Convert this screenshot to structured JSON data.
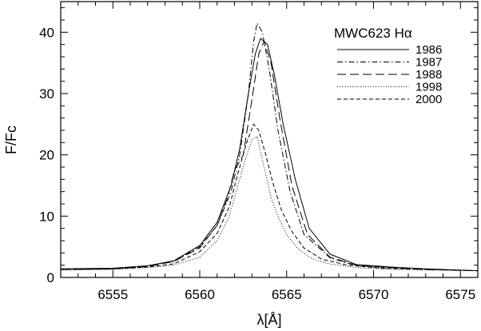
{
  "chart_data": {
    "type": "line",
    "xlabel": "λ[Å]",
    "ylabel": "F/Fc",
    "xlim": [
      6552,
      6576
    ],
    "ylim": [
      0,
      45
    ],
    "x_ticks": [
      6555,
      6560,
      6565,
      6570,
      6575
    ],
    "y_ticks": [
      0,
      10,
      20,
      30,
      40
    ],
    "grid": false,
    "legend": {
      "title": "MWC623  Hα",
      "placement": "top-right"
    },
    "series": [
      {
        "name": "1986",
        "style": "solid",
        "x": [
          6552,
          6555,
          6557,
          6558.5,
          6560,
          6561,
          6561.8,
          6562.3,
          6562.8,
          6563.2,
          6563.5,
          6563.9,
          6564.3,
          6564.8,
          6565.5,
          6566.3,
          6567.5,
          6569,
          6571,
          6573,
          6576
        ],
        "y": [
          1.4,
          1.5,
          1.9,
          2.7,
          5.2,
          9,
          15,
          21,
          30,
          36.5,
          39,
          38,
          33,
          25,
          16,
          8,
          3.8,
          2.1,
          1.7,
          1.4,
          1.1
        ]
      },
      {
        "name": "1987",
        "style": "dashdot",
        "x": [
          6552,
          6555,
          6557,
          6558.5,
          6560,
          6561,
          6561.8,
          6562.3,
          6562.8,
          6563.1,
          6563.3,
          6563.6,
          6564,
          6564.5,
          6565.2,
          6566,
          6567.5,
          6569,
          6571,
          6573,
          6576
        ],
        "y": [
          1.3,
          1.4,
          1.8,
          2.6,
          5,
          8.5,
          14,
          20,
          30,
          38.5,
          41.5,
          40,
          34,
          24,
          14,
          7,
          3.2,
          1.9,
          1.5,
          1.3,
          1.1
        ]
      },
      {
        "name": "1988",
        "style": "longdash",
        "x": [
          6552,
          6555,
          6557,
          6558.5,
          6560,
          6561,
          6561.6,
          6562,
          6562.5,
          6563,
          6563.4,
          6563.7,
          6564.1,
          6564.6,
          6565.3,
          6566.2,
          6567.5,
          6569,
          6571,
          6573,
          6576
        ],
        "y": [
          1.3,
          1.4,
          1.8,
          2.6,
          4.8,
          8.5,
          13,
          17.5,
          20,
          29,
          36.5,
          38.5,
          35,
          26,
          15,
          7,
          3.3,
          2,
          1.6,
          1.3,
          1.1
        ]
      },
      {
        "name": "1998",
        "style": "dotted",
        "x": [
          6552,
          6555,
          6557,
          6558.5,
          6560,
          6561,
          6561.7,
          6562.2,
          6562.6,
          6563,
          6563.3,
          6563.7,
          6564.1,
          6564.5,
          6565,
          6565.7,
          6566.5,
          6567.5,
          6569,
          6571,
          6576
        ],
        "y": [
          1.2,
          1.3,
          1.6,
          2,
          3.3,
          6,
          10,
          15,
          19,
          22.5,
          23,
          18,
          13,
          10,
          7,
          4.5,
          3,
          2.2,
          1.6,
          1.3,
          1.1
        ]
      },
      {
        "name": "2000",
        "style": "dashed",
        "x": [
          6552,
          6555,
          6557,
          6558.5,
          6560,
          6561,
          6561.7,
          6562.2,
          6562.7,
          6563.1,
          6563.4,
          6563.8,
          6564.2,
          6564.7,
          6565.3,
          6566,
          6567,
          6568.5,
          6570.5,
          6573,
          6576
        ],
        "y": [
          1.3,
          1.4,
          1.7,
          2.2,
          4.2,
          7.2,
          11.5,
          17,
          22,
          25,
          24,
          20,
          15.5,
          11,
          7.5,
          4.8,
          3,
          2,
          1.5,
          1.3,
          1.1
        ]
      }
    ]
  }
}
